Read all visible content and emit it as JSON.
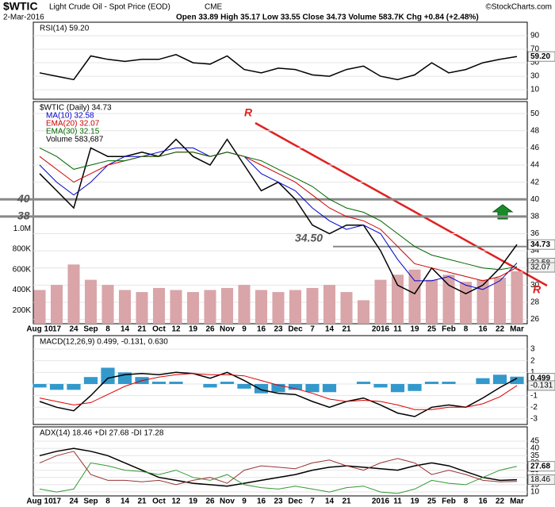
{
  "header": {
    "symbol": "$WTIC",
    "name": "Light Crude Oil - Spot Price (EOD)",
    "exchange": "CME",
    "date": "2-Mar-2016",
    "quote": "Open 33.89 High 35.17 Low 33.55 Close 34.73 Volume 583.7K Chg +0.84 (+2.48%)",
    "credit": "©StockCharts.com"
  },
  "chart_data": [
    {
      "type": "line",
      "label": "RSI(14) 59.20",
      "ylim": [
        -4,
        110
      ],
      "yticks": [
        90,
        70,
        50,
        30,
        10
      ],
      "series": [
        {
          "color": "#000000",
          "values": [
            35,
            30,
            25,
            60,
            55,
            52,
            55,
            55,
            62,
            50,
            48,
            60,
            40,
            35,
            42,
            40,
            32,
            30,
            40,
            45,
            30,
            25,
            32,
            50,
            35,
            40,
            50,
            55,
            59.2
          ]
        }
      ],
      "last_labels": [
        {
          "value": 59.2,
          "label": "59.20"
        }
      ]
    },
    {
      "type": "line",
      "label": "$WTIC (Daily) 34.73",
      "ylim": [
        25.5,
        51.4
      ],
      "yticks": [
        50,
        48,
        46,
        44,
        42,
        40,
        38,
        36,
        34,
        32,
        30,
        28,
        26
      ],
      "categories": [
        "Aug 10",
        "17",
        "24",
        "Sep",
        "8",
        "14",
        "21",
        "Oct",
        "12",
        "19",
        "26",
        "Nov",
        "9",
        "16",
        "23",
        "Dec",
        "7",
        "14",
        "21",
        null,
        "2016",
        "11",
        "19",
        "25",
        "Feb",
        "8",
        "16",
        "22",
        "Mar"
      ],
      "series": [
        {
          "name": "$WTIC (Daily) 34.73",
          "color": "#000000",
          "values": [
            43,
            41,
            39,
            46,
            45,
            45,
            45.5,
            45,
            47,
            45,
            44,
            47,
            44,
            41,
            42,
            40,
            37,
            36,
            37,
            37,
            34,
            30,
            29,
            32,
            30,
            29,
            30,
            32,
            34.73
          ]
        },
        {
          "name": "MA(10) 32.58",
          "color": "#0000cc",
          "values": [
            44,
            42,
            40.5,
            42,
            44,
            45,
            45,
            45.5,
            46,
            46,
            45,
            45.5,
            45,
            43,
            42,
            41,
            39,
            37.5,
            36.5,
            37,
            36,
            33,
            30.5,
            30.5,
            31,
            30,
            29.5,
            30.5,
            32.58
          ]
        },
        {
          "name": "EMA(20) 32.07",
          "color": "#cc0000",
          "values": [
            45,
            43.5,
            42,
            43,
            44,
            44.5,
            45,
            45,
            45.5,
            45.5,
            45,
            45.5,
            45,
            44,
            43,
            42,
            40.5,
            39,
            38,
            37.5,
            36.5,
            34.5,
            32.5,
            32,
            31.5,
            31,
            30.5,
            31,
            32.07
          ]
        },
        {
          "name": "EMA(30) 32.15",
          "color": "#006600",
          "values": [
            46,
            45,
            43.5,
            44,
            44.5,
            44.5,
            45,
            45,
            45.5,
            45.5,
            45,
            45.5,
            45,
            44.5,
            43.5,
            42.5,
            41.5,
            40,
            39,
            38.5,
            37.5,
            36,
            34.5,
            33.5,
            33,
            32.5,
            32,
            31.8,
            32.15
          ]
        }
      ],
      "volume": {
        "name": "Volume 583,687",
        "color": "#d9a5a8",
        "ylim": [
          70000,
          2245000
        ],
        "yticks": [
          {
            "value": 1000000,
            "label": "1.0M"
          },
          {
            "value": 800000,
            "label": "800K"
          },
          {
            "value": 600000,
            "label": "600K"
          },
          {
            "value": 400000,
            "label": "400K"
          },
          {
            "value": 200000,
            "label": "200K"
          }
        ],
        "values": [
          400000,
          450000,
          650000,
          500000,
          450000,
          400000,
          380000,
          420000,
          400000,
          380000,
          400000,
          420000,
          450000,
          400000,
          380000,
          400000,
          420000,
          450000,
          380000,
          300000,
          500000,
          550000,
          600000,
          500000,
          550000,
          480000,
          500000,
          520000,
          583687
        ]
      },
      "levels": [
        {
          "value": 40,
          "label": "40"
        },
        {
          "value": 38,
          "label": "38"
        },
        {
          "value": 34.5,
          "label": "34.50"
        }
      ],
      "annotations": [
        "R",
        "R"
      ],
      "last_labels": [
        {
          "value": 34.73,
          "label": "34.73"
        },
        {
          "value": 32.58,
          "label": "32.58"
        },
        {
          "value": 32.07,
          "label": "32.07"
        }
      ]
    },
    {
      "type": "line",
      "label": "MACD(12,26,9) 0.499, -0.131, 0.630",
      "ylim": [
        -3.48,
        4.16
      ],
      "yticks": [
        3,
        2,
        1,
        0,
        -1,
        -2,
        -3
      ],
      "series": [
        {
          "color": "#000000",
          "values": [
            -1.5,
            -2,
            -2.3,
            -1,
            0.5,
            0.8,
            0.9,
            0.8,
            1,
            0.9,
            0.5,
            1,
            0.3,
            -0.5,
            -0.8,
            -0.9,
            -1.5,
            -2,
            -1.5,
            -1.2,
            -1.8,
            -2.5,
            -2.8,
            -2,
            -1.8,
            -2,
            -1.2,
            -0.3,
            0.499
          ]
        },
        {
          "color": "#dd0000",
          "values": [
            -1.2,
            -1.5,
            -1.8,
            -1.6,
            -0.9,
            -0.2,
            0.3,
            0.6,
            0.8,
            0.9,
            0.8,
            0.8,
            0.7,
            0.3,
            -0.1,
            -0.4,
            -0.8,
            -1.3,
            -1.5,
            -1.4,
            -1.5,
            -1.8,
            -2.2,
            -2.2,
            -2,
            -2,
            -1.7,
            -1.1,
            -0.131
          ]
        }
      ],
      "histogram": {
        "color": "#3399cc",
        "values": [
          -0.3,
          -0.5,
          -0.5,
          0.6,
          1.4,
          1,
          0.6,
          0.2,
          0.2,
          0,
          -0.3,
          0.2,
          -0.4,
          -0.8,
          -0.7,
          -0.5,
          -0.7,
          -0.7,
          0,
          0.2,
          -0.3,
          -0.7,
          -0.6,
          0.2,
          0.2,
          0,
          0.5,
          0.8,
          0.63
        ]
      },
      "last_labels": [
        {
          "value": 0.499,
          "label": "0.499"
        },
        {
          "value": -0.131,
          "label": "-0.131"
        }
      ]
    },
    {
      "type": "line",
      "label": "ADX(14) 18.46 +DI 27.68 -DI 17.28",
      "ylim": [
        7.3,
        54.8
      ],
      "yticks": [
        45,
        40,
        35,
        30,
        25,
        20,
        15,
        10
      ],
      "series": [
        {
          "color": "#000000",
          "values": [
            35,
            38,
            40,
            38,
            35,
            30,
            25,
            20,
            18,
            16,
            15,
            14,
            16,
            18,
            20,
            22,
            25,
            27,
            28,
            27,
            26,
            25,
            28,
            30,
            28,
            24,
            20,
            18,
            18.46
          ]
        },
        {
          "color": "#339933",
          "values": [
            12,
            10,
            12,
            30,
            28,
            25,
            24,
            22,
            25,
            20,
            18,
            22,
            15,
            13,
            12,
            14,
            12,
            10,
            13,
            14,
            10,
            9,
            12,
            18,
            16,
            15,
            20,
            25,
            27.68
          ]
        },
        {
          "color": "#993333",
          "values": [
            30,
            35,
            38,
            22,
            18,
            18,
            17,
            18,
            15,
            18,
            20,
            16,
            25,
            28,
            27,
            26,
            30,
            32,
            28,
            25,
            30,
            33,
            30,
            22,
            25,
            22,
            18,
            17,
            17.28
          ]
        }
      ],
      "last_labels": [
        {
          "value": 27.68,
          "label": "27.68"
        },
        {
          "value": 18.46,
          "label": "18.46"
        }
      ]
    }
  ]
}
